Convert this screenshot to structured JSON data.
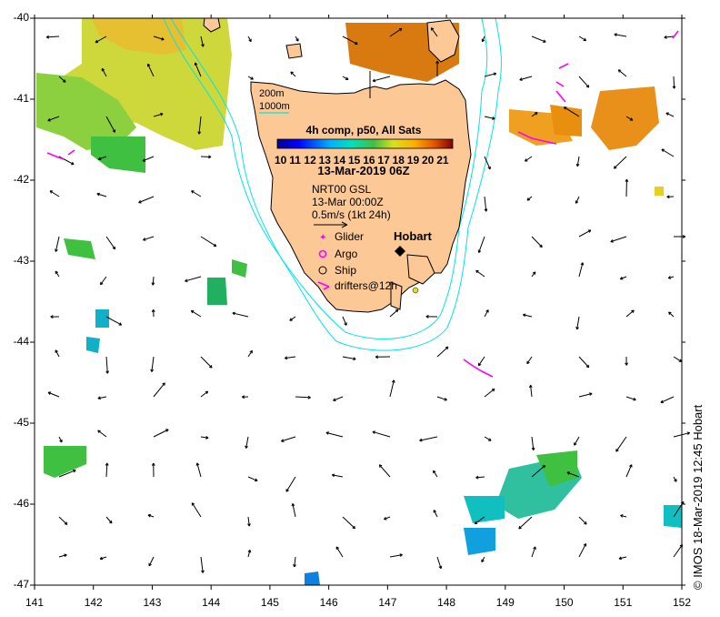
{
  "product_title": "4h comp, p50, All Sats",
  "colorbar": {
    "tick_labels": [
      "10",
      "11",
      "12",
      "13",
      "14",
      "15",
      "16",
      "17",
      "18",
      "19",
      "20",
      "21"
    ],
    "min": 10,
    "max": 21
  },
  "date_label": "13-Mar-2019 06Z",
  "currents": {
    "source_label": "NRT00 GSL",
    "time_label": "13-Mar 00:00Z",
    "scale_label": "0.5m/s (1kt 24h)"
  },
  "isobaths": [
    "200m",
    "1000m"
  ],
  "legend": [
    {
      "label": "Glider",
      "symbol": "glider"
    },
    {
      "label": "Argo",
      "symbol": "argo"
    },
    {
      "label": "Ship",
      "symbol": "ship"
    },
    {
      "label": "drifters@12h",
      "symbol": "drifter"
    }
  ],
  "place_label": "Hobart",
  "credit": "© IMOS 18-Mar-2019 12:45 Hobart",
  "axes": {
    "lat_ticks": [
      "-40",
      "-41",
      "-42",
      "-43",
      "-44",
      "-45",
      "-46",
      "-47"
    ],
    "lon_ticks": [
      "141",
      "142",
      "143",
      "144",
      "145",
      "146",
      "147",
      "148",
      "149",
      "150",
      "151",
      "152"
    ],
    "lon_range": [
      141,
      152
    ],
    "lat_range": [
      -47,
      -40
    ]
  },
  "colors": {
    "land": "#fcc896",
    "isobath": "#00e5e5",
    "drifter": "#ff00ff",
    "coast": "#000000"
  }
}
